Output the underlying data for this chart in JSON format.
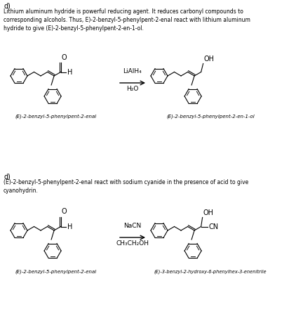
{
  "bg_color": "#ffffff",
  "text_color": "#1a1a1a",
  "section1": {
    "label": "d)",
    "description": "Lithium aluminum hydride is powerful reducing agent. It reduces carbonyl compounds to\ncorresponding alcohols. Thus, E)-2-benzyl-5-phenylpent-2-enal react with lithium aluminum\nhydride to give (E)-2-benzyl-5-phenylpent-2-en-1-ol.",
    "reagent_line1": "LiAlH₄",
    "reagent_line2": "H₂O",
    "reactant_label": "(E)-2-benzyl-5-phenylpent-2-enal",
    "product_label": "(E)-2-benzyl-5-phenylpent-2-en-1-ol"
  },
  "section2": {
    "label": "d)",
    "description": "(E)-2-benzyl-5-phenylpent-2-enal react with sodium cyanide in the presence of acid to give\ncyanohydrin.",
    "reagent_line1": "NaCN",
    "reagent_line2": "CH₃CH₂OH",
    "reactant_label": "(E)-2-benzyl-5-phenylpent-2-enal",
    "product_label": "(E)-3-benzyl-2-hydroxy-6-phenylhex-3-enenitrile"
  }
}
